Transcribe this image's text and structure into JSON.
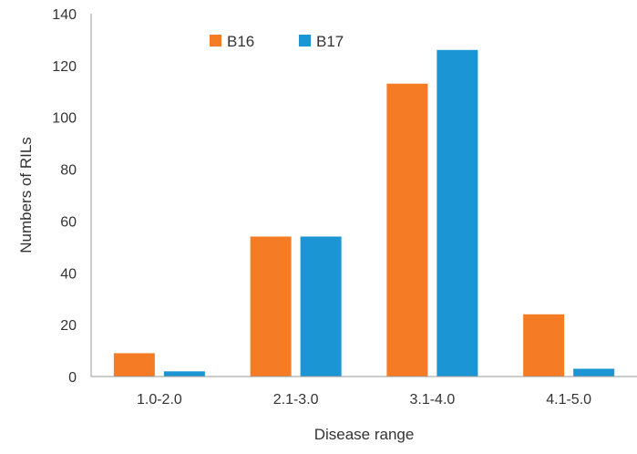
{
  "chart_data": {
    "type": "bar",
    "title": "",
    "xlabel": "Disease range",
    "ylabel": "Numbers of RILs",
    "categories": [
      "1.0-2.0",
      "2.1-3.0",
      "3.1-4.0",
      "4.1-5.0"
    ],
    "series": [
      {
        "name": "B16",
        "color": "#f57c24",
        "values": [
          9,
          54,
          113,
          24
        ]
      },
      {
        "name": "B17",
        "color": "#1b95d3",
        "values": [
          2,
          54,
          126,
          3
        ]
      }
    ],
    "ylim": [
      0,
      140
    ],
    "yticks": [
      0,
      20,
      40,
      60,
      80,
      100,
      120,
      140
    ],
    "grid": false,
    "legend": "top-left"
  }
}
